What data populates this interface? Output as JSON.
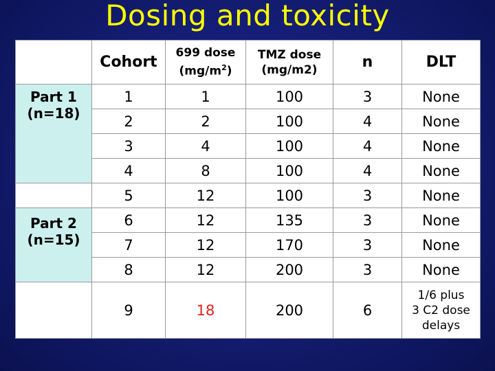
{
  "title": "Dosing and toxicity",
  "headers": {
    "cohort": "Cohort",
    "dose699_line1": "699 dose",
    "dose699_line2": "(mg/m",
    "dose699_sup": "2",
    "dose699_close": ")",
    "tmz_line1": "TMZ dose",
    "tmz_line2": "(mg/m2)",
    "n": "n",
    "dlt": "DLT"
  },
  "parts": {
    "part1_line1": "Part 1",
    "part1_line2": "(n=18)",
    "part2_line1": "Part 2",
    "part2_line2": "(n=15)"
  },
  "rows": [
    {
      "cohort": "1",
      "dose699": "1",
      "tmz": "100",
      "n": "3",
      "dlt": "None"
    },
    {
      "cohort": "2",
      "dose699": "2",
      "tmz": "100",
      "n": "4",
      "dlt": "None"
    },
    {
      "cohort": "3",
      "dose699": "4",
      "tmz": "100",
      "n": "4",
      "dlt": "None"
    },
    {
      "cohort": "4",
      "dose699": "8",
      "tmz": "100",
      "n": "4",
      "dlt": "None"
    },
    {
      "cohort": "5",
      "dose699": "12",
      "tmz": "100",
      "n": "3",
      "dlt": "None"
    },
    {
      "cohort": "6",
      "dose699": "12",
      "tmz": "135",
      "n": "3",
      "dlt": "None"
    },
    {
      "cohort": "7",
      "dose699": "12",
      "tmz": "170",
      "n": "3",
      "dlt": "None"
    },
    {
      "cohort": "8",
      "dose699": "12",
      "tmz": "200",
      "n": "3",
      "dlt": "None"
    },
    {
      "cohort": "9",
      "dose699": "18",
      "tmz": "200",
      "n": "6",
      "dlt_line1": "1/6 plus",
      "dlt_line2": "3 C2 dose",
      "dlt_line3": "delays"
    }
  ],
  "colors": {
    "title": "#ffff00",
    "highlight_dose": "#e02020",
    "part_cell": "#ccf0ee",
    "background": "#151f78"
  }
}
